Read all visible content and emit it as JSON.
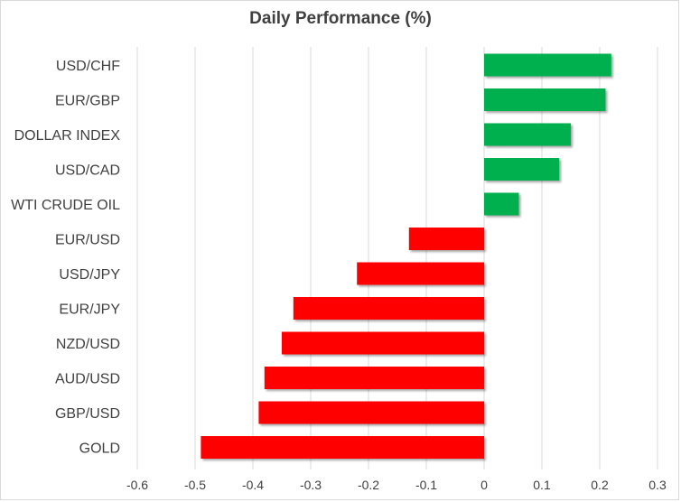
{
  "chart_data": {
    "type": "bar",
    "orientation": "horizontal",
    "title": "Daily Performance (%)",
    "xlabel": "",
    "ylabel": "",
    "categories": [
      "USD/CHF",
      "EUR/GBP",
      "DOLLAR INDEX",
      "USD/CAD",
      "WTI CRUDE OIL",
      "EUR/USD",
      "USD/JPY",
      "EUR/JPY",
      "NZD/USD",
      "AUD/USD",
      "GBP/USD",
      "GOLD"
    ],
    "values": [
      0.22,
      0.21,
      0.15,
      0.13,
      0.06,
      -0.13,
      -0.22,
      -0.33,
      -0.35,
      -0.38,
      -0.39,
      -0.49
    ],
    "xlim": [
      -0.6,
      0.3
    ],
    "xticks": [
      "-0.6",
      "-0.5",
      "-0.4",
      "-0.3",
      "-0.2",
      "-0.1",
      "0",
      "0.1",
      "0.2",
      "0.3"
    ],
    "grid": true,
    "legend": "none",
    "colors": {
      "positive": "#00b050",
      "negative": "#ff0000",
      "grid": "#d9d9d9"
    }
  }
}
